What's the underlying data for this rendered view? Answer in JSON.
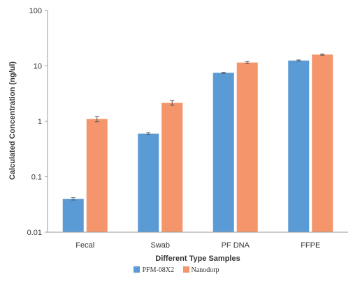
{
  "chart_data": {
    "type": "bar",
    "xlabel": "Different Type Samples",
    "ylabel": "Calculated Concentration  (ng/ul)",
    "yscale": "log",
    "ylim": [
      0.01,
      100
    ],
    "yticks": [
      "0.01",
      "0.1",
      "1",
      "10",
      "100"
    ],
    "categories": [
      "Fecal",
      "Swab",
      "PF DNA",
      "FFPE"
    ],
    "series": [
      {
        "name": "PFM-08X2",
        "color": "#5b9bd5",
        "values": [
          0.04,
          0.6,
          7.5,
          12.5
        ],
        "errors": [
          0.002,
          0.02,
          0.15,
          0.3
        ]
      },
      {
        "name": "Nanodorp",
        "color": "#f4956b",
        "values": [
          1.1,
          2.15,
          11.5,
          16.0
        ],
        "errors": [
          0.12,
          0.2,
          0.5,
          0.4
        ]
      }
    ],
    "grid": false,
    "legend_position": "bottom"
  }
}
